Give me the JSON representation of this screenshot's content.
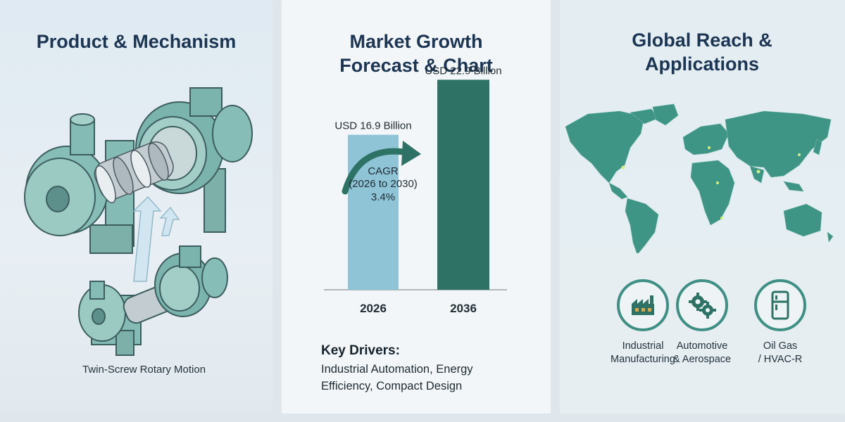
{
  "panels": {
    "left": {
      "title": "Product & Mechanism",
      "caption": "Twin-Screw Rotary Motion"
    },
    "middle": {
      "title": "Market Growth Forecast & Chart"
    },
    "right": {
      "title": "Global Reach & Applications"
    }
  },
  "chart_data": {
    "type": "bar",
    "categories": [
      "2026",
      "2036"
    ],
    "values": [
      16.9,
      22.9
    ],
    "value_labels": [
      "USD 16.9 Billion",
      "USD 22.9 Billion"
    ],
    "annotation": {
      "line1": "CAGR",
      "line2": "(2026 to 2030)",
      "line3": "3.4%"
    },
    "ylim": [
      0,
      25
    ],
    "colors": [
      "#8fc4d6",
      "#2e7266"
    ]
  },
  "drivers": {
    "title": "Key Drivers:",
    "text": "Industrial Automation, Energy Efficiency, Compact Design"
  },
  "applications": [
    {
      "icon": "factory-icon",
      "label": "Industrial\nManufacturing"
    },
    {
      "icon": "gears-icon",
      "label": "Automotive\n& Aerospace"
    },
    {
      "icon": "refrigerator-icon",
      "label": "Oil Gas\n/ HVAC-R"
    }
  ],
  "colors": {
    "accent": "#3f8f84",
    "title": "#1c3553"
  }
}
